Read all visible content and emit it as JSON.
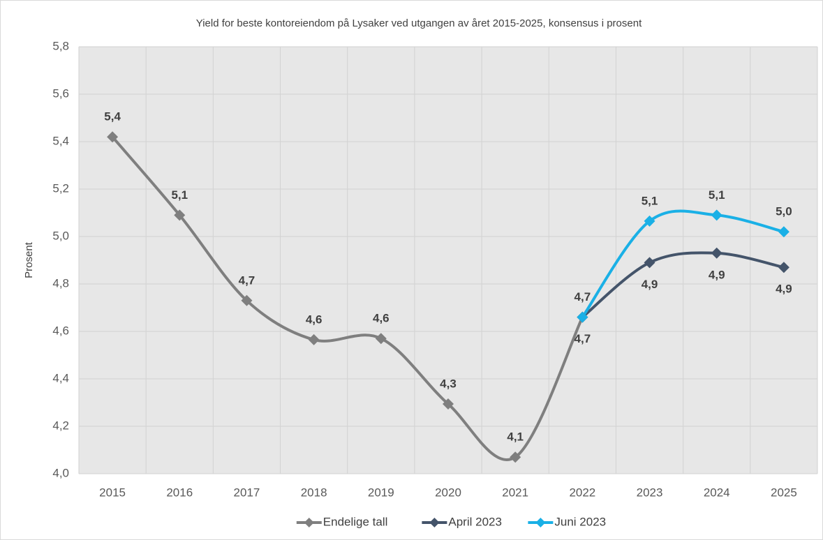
{
  "chart_data": {
    "type": "line",
    "title": "Yield for beste kontoreiendom på Lysaker ved utgangen av året 2015-2025, konsensus i prosent",
    "y_label": "Prosent",
    "categories": [
      "2015",
      "2016",
      "2017",
      "2018",
      "2019",
      "2020",
      "2021",
      "2022",
      "2023",
      "2024",
      "2025"
    ],
    "series": [
      {
        "name": "Endelige tall",
        "color": "#7f7f7f",
        "values": [
          5.42,
          5.09,
          4.73,
          4.565,
          4.57,
          4.294,
          4.07,
          4.66,
          null,
          null,
          null
        ],
        "value_labels": [
          "5,4",
          "5,1",
          "4,7",
          "4,6",
          "4,6",
          "4,3",
          "4,1",
          "4,7",
          null,
          null,
          null
        ]
      },
      {
        "name": "April 2023",
        "color": "#44546a",
        "values": [
          null,
          null,
          null,
          null,
          null,
          null,
          null,
          4.66,
          4.89,
          4.93,
          4.87
        ],
        "value_labels": [
          null,
          null,
          null,
          null,
          null,
          null,
          null,
          "4,7",
          "4,9",
          "4,9",
          "4,9"
        ]
      },
      {
        "name": "Juni 2023",
        "color": "#1ab0e6",
        "values": [
          null,
          null,
          null,
          null,
          null,
          null,
          null,
          4.66,
          5.065,
          5.09,
          5.02
        ],
        "value_labels": [
          null,
          null,
          null,
          null,
          null,
          null,
          null,
          null,
          "5,1",
          "5,1",
          "5,0"
        ]
      }
    ],
    "ylim": [
      4.0,
      5.8
    ],
    "yticks": [
      {
        "value": 4.0,
        "label": "4,0"
      },
      {
        "value": 4.2,
        "label": "4,2"
      },
      {
        "value": 4.4,
        "label": "4,4"
      },
      {
        "value": 4.6,
        "label": "4,6"
      },
      {
        "value": 4.8,
        "label": "4,8"
      },
      {
        "value": 5.0,
        "label": "5,0"
      },
      {
        "value": 5.2,
        "label": "5,2"
      },
      {
        "value": 5.4,
        "label": "5,4"
      },
      {
        "value": 5.6,
        "label": "5,6"
      },
      {
        "value": 5.8,
        "label": "5,8"
      }
    ],
    "grid": true,
    "smooth": true,
    "legend": "bottom"
  }
}
